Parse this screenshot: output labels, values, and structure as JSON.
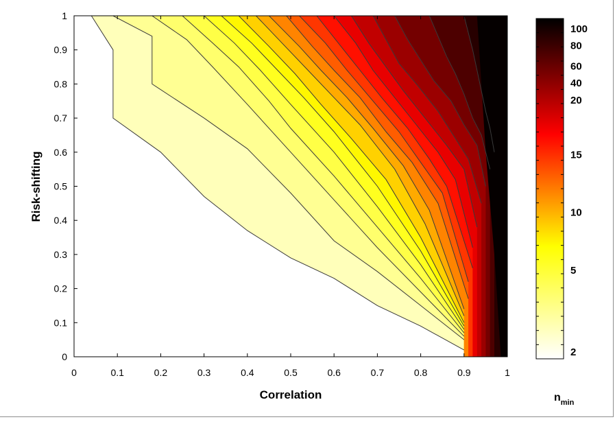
{
  "chart_data": {
    "type": "heatmap",
    "subtype": "filled-contour",
    "xlabel": "Correlation",
    "ylabel": "Risk-shifting",
    "xlim": [
      0,
      1
    ],
    "ylim": [
      0,
      1
    ],
    "x_ticks": [
      0,
      0.1,
      0.2,
      0.3,
      0.4,
      0.5,
      0.6,
      0.7,
      0.8,
      0.9,
      1
    ],
    "y_ticks": [
      0,
      0.1,
      0.2,
      0.3,
      0.4,
      0.5,
      0.6,
      0.7,
      0.8,
      0.9,
      1
    ],
    "x_tick_labels": [
      "0",
      "0.1",
      "0.2",
      "0.3",
      "0.4",
      "0.5",
      "0.6",
      "0.7",
      "0.8",
      "0.9",
      "1"
    ],
    "y_tick_labels": [
      "0",
      "0.1",
      "0.2",
      "0.3",
      "0.4",
      "0.5",
      "0.6",
      "0.7",
      "0.8",
      "0.9",
      "1"
    ],
    "colormap": "hot-reversed",
    "colormap_colors": [
      "#ffffff",
      "#ffff00",
      "#ff0000",
      "#000000"
    ],
    "colorbar": {
      "title_main": "n",
      "title_sub": "min",
      "labels": [
        "2",
        "5",
        "10",
        "15",
        "20",
        "40",
        "60",
        "80",
        "100"
      ]
    },
    "contours": [
      {
        "points": [
          [
            0.04,
            1.0
          ],
          [
            0.09,
            0.9
          ],
          [
            0.09,
            0.7
          ],
          [
            0.2,
            0.6
          ],
          [
            0.3,
            0.47
          ],
          [
            0.4,
            0.37
          ],
          [
            0.5,
            0.29
          ],
          [
            0.6,
            0.23
          ],
          [
            0.7,
            0.15
          ],
          [
            0.8,
            0.09
          ],
          [
            0.9,
            0.02
          ]
        ]
      },
      {
        "points": [
          [
            0.09,
            1.0
          ],
          [
            0.18,
            0.94
          ],
          [
            0.18,
            0.8
          ],
          [
            0.3,
            0.7
          ],
          [
            0.4,
            0.61
          ],
          [
            0.5,
            0.48
          ],
          [
            0.6,
            0.34
          ],
          [
            0.7,
            0.25
          ],
          [
            0.8,
            0.15
          ],
          [
            0.9,
            0.05
          ]
        ]
      },
      {
        "points": [
          [
            0.18,
            1.0
          ],
          [
            0.26,
            0.93
          ],
          [
            0.32,
            0.85
          ],
          [
            0.4,
            0.74
          ],
          [
            0.5,
            0.6
          ],
          [
            0.6,
            0.46
          ],
          [
            0.7,
            0.32
          ],
          [
            0.8,
            0.19
          ],
          [
            0.9,
            0.06
          ]
        ]
      },
      {
        "points": [
          [
            0.25,
            1.0
          ],
          [
            0.32,
            0.92
          ],
          [
            0.38,
            0.85
          ],
          [
            0.45,
            0.75
          ],
          [
            0.5,
            0.67
          ],
          [
            0.6,
            0.53
          ],
          [
            0.7,
            0.38
          ],
          [
            0.8,
            0.23
          ],
          [
            0.9,
            0.07
          ]
        ]
      },
      {
        "points": [
          [
            0.3,
            1.0
          ],
          [
            0.37,
            0.92
          ],
          [
            0.43,
            0.84
          ],
          [
            0.5,
            0.74
          ],
          [
            0.6,
            0.6
          ],
          [
            0.7,
            0.44
          ],
          [
            0.8,
            0.27
          ],
          [
            0.9,
            0.08
          ]
        ]
      },
      {
        "points": [
          [
            0.34,
            1.0
          ],
          [
            0.41,
            0.92
          ],
          [
            0.47,
            0.84
          ],
          [
            0.53,
            0.76
          ],
          [
            0.6,
            0.66
          ],
          [
            0.7,
            0.5
          ],
          [
            0.8,
            0.31
          ],
          [
            0.9,
            0.09
          ]
        ]
      },
      {
        "points": [
          [
            0.38,
            1.0
          ],
          [
            0.45,
            0.91
          ],
          [
            0.51,
            0.83
          ],
          [
            0.57,
            0.74
          ],
          [
            0.64,
            0.64
          ],
          [
            0.72,
            0.52
          ],
          [
            0.8,
            0.35
          ],
          [
            0.9,
            0.1
          ]
        ]
      },
      {
        "points": [
          [
            0.42,
            1.0
          ],
          [
            0.48,
            0.92
          ],
          [
            0.54,
            0.84
          ],
          [
            0.6,
            0.76
          ],
          [
            0.66,
            0.68
          ],
          [
            0.74,
            0.55
          ],
          [
            0.81,
            0.39
          ],
          [
            0.9,
            0.12
          ]
        ]
      },
      {
        "points": [
          [
            0.45,
            1.0
          ],
          [
            0.52,
            0.91
          ],
          [
            0.57,
            0.84
          ],
          [
            0.63,
            0.76
          ],
          [
            0.69,
            0.67
          ],
          [
            0.76,
            0.56
          ],
          [
            0.82,
            0.43
          ],
          [
            0.9,
            0.14
          ]
        ]
      },
      {
        "points": [
          [
            0.49,
            1.0
          ],
          [
            0.55,
            0.91
          ],
          [
            0.6,
            0.84
          ],
          [
            0.66,
            0.76
          ],
          [
            0.72,
            0.66
          ],
          [
            0.78,
            0.57
          ],
          [
            0.84,
            0.45
          ],
          [
            0.91,
            0.17
          ]
        ]
      },
      {
        "points": [
          [
            0.52,
            1.0
          ],
          [
            0.58,
            0.92
          ],
          [
            0.63,
            0.84
          ],
          [
            0.69,
            0.75
          ],
          [
            0.75,
            0.66
          ],
          [
            0.8,
            0.57
          ],
          [
            0.85,
            0.48
          ],
          [
            0.91,
            0.22
          ]
        ]
      },
      {
        "points": [
          [
            0.56,
            1.0
          ],
          [
            0.61,
            0.92
          ],
          [
            0.66,
            0.84
          ],
          [
            0.71,
            0.76
          ],
          [
            0.77,
            0.67
          ],
          [
            0.82,
            0.58
          ],
          [
            0.86,
            0.5
          ],
          [
            0.92,
            0.26
          ]
        ]
      },
      {
        "points": [
          [
            0.6,
            1.0
          ],
          [
            0.65,
            0.92
          ],
          [
            0.69,
            0.84
          ],
          [
            0.74,
            0.76
          ],
          [
            0.79,
            0.68
          ],
          [
            0.84,
            0.6
          ],
          [
            0.88,
            0.52
          ],
          [
            0.92,
            0.32
          ]
        ]
      },
      {
        "points": [
          [
            0.64,
            1.0
          ],
          [
            0.68,
            0.92
          ],
          [
            0.72,
            0.85
          ],
          [
            0.76,
            0.78
          ],
          [
            0.81,
            0.7
          ],
          [
            0.86,
            0.62
          ],
          [
            0.9,
            0.55
          ],
          [
            0.93,
            0.38
          ]
        ]
      },
      {
        "points": [
          [
            0.69,
            1.0
          ],
          [
            0.72,
            0.93
          ],
          [
            0.75,
            0.86
          ],
          [
            0.79,
            0.8
          ],
          [
            0.84,
            0.72
          ],
          [
            0.88,
            0.64
          ],
          [
            0.91,
            0.58
          ],
          [
            0.94,
            0.45
          ]
        ]
      },
      {
        "points": [
          [
            0.74,
            1.0
          ],
          [
            0.77,
            0.93
          ],
          [
            0.8,
            0.87
          ],
          [
            0.83,
            0.81
          ],
          [
            0.87,
            0.75
          ],
          [
            0.9,
            0.68
          ],
          [
            0.93,
            0.62
          ],
          [
            0.95,
            0.5
          ]
        ]
      },
      {
        "points": [
          [
            0.82,
            1.0
          ],
          [
            0.84,
            0.94
          ],
          [
            0.86,
            0.88
          ],
          [
            0.88,
            0.83
          ],
          [
            0.9,
            0.77
          ],
          [
            0.92,
            0.7
          ],
          [
            0.94,
            0.65
          ],
          [
            0.96,
            0.55
          ]
        ]
      },
      {
        "points": [
          [
            0.9,
            1.0
          ],
          [
            0.91,
            0.95
          ],
          [
            0.92,
            0.9
          ],
          [
            0.93,
            0.84
          ],
          [
            0.94,
            0.78
          ],
          [
            0.95,
            0.72
          ],
          [
            0.96,
            0.67
          ],
          [
            0.97,
            0.6
          ]
        ]
      }
    ]
  }
}
